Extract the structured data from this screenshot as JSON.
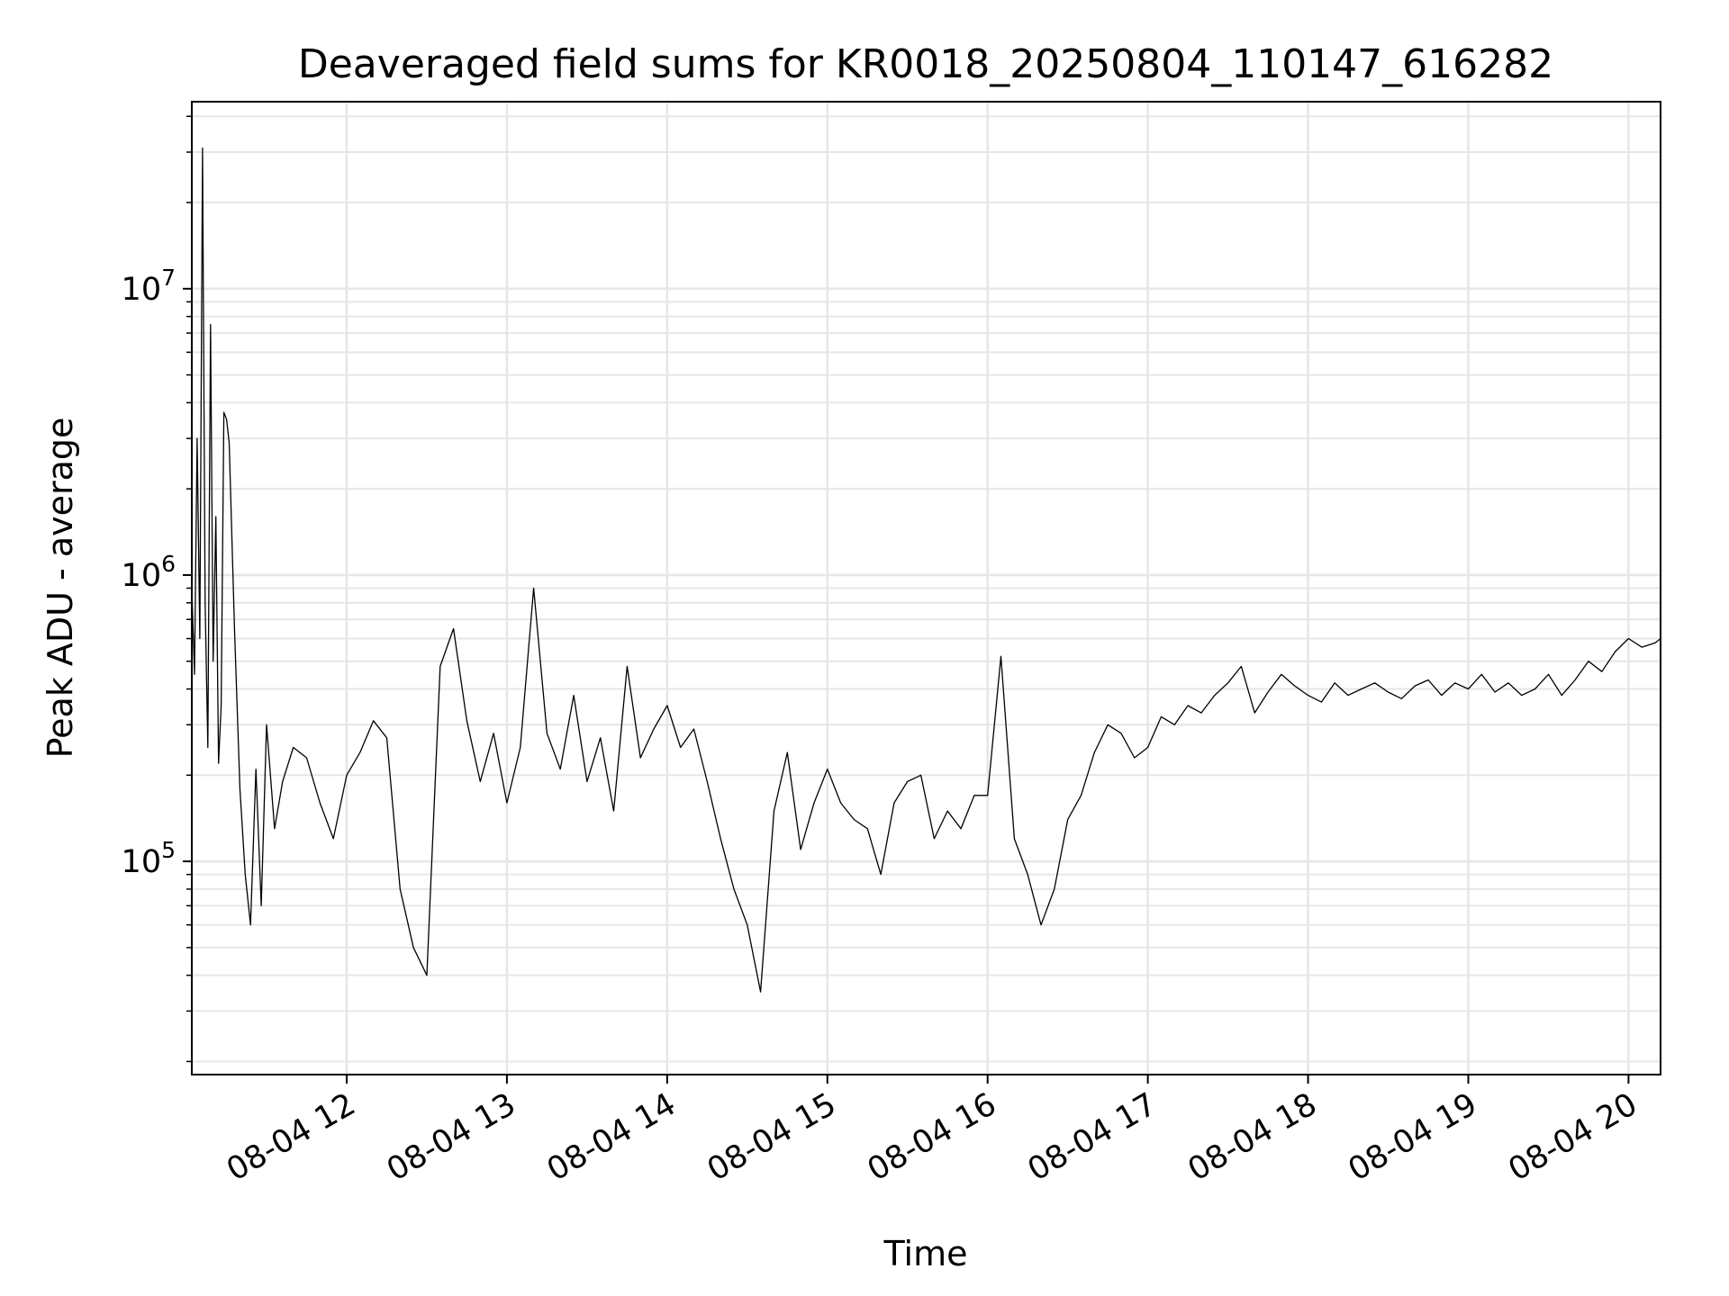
{
  "chart_data": {
    "type": "line",
    "title": "Deaveraged field sums for KR0018_20250804_110147_616282",
    "xlabel": "Time",
    "ylabel": "Peak ADU - average",
    "yscale": "log",
    "grid": true,
    "line_color": "#000000",
    "grid_color": "#e6e6e6",
    "xlim": [
      "2025-08-04 11:02",
      "2025-08-04 20:12"
    ],
    "ylim": [
      18000,
      45000000
    ],
    "x_ticks": [
      {
        "t": "2025-08-04 12:00",
        "label": "08-04 12"
      },
      {
        "t": "2025-08-04 13:00",
        "label": "08-04 13"
      },
      {
        "t": "2025-08-04 14:00",
        "label": "08-04 14"
      },
      {
        "t": "2025-08-04 15:00",
        "label": "08-04 15"
      },
      {
        "t": "2025-08-04 16:00",
        "label": "08-04 16"
      },
      {
        "t": "2025-08-04 17:00",
        "label": "08-04 17"
      },
      {
        "t": "2025-08-04 18:00",
        "label": "08-04 18"
      },
      {
        "t": "2025-08-04 19:00",
        "label": "08-04 19"
      },
      {
        "t": "2025-08-04 20:00",
        "label": "08-04 20"
      }
    ],
    "y_ticks": [
      {
        "value": 100000,
        "base": "10",
        "exp": "5"
      },
      {
        "value": 1000000,
        "base": "10",
        "exp": "6"
      },
      {
        "value": 10000000,
        "base": "10",
        "exp": "7"
      }
    ],
    "series": [
      {
        "x": [
          "2025-08-04 11:02",
          "2025-08-04 11:03",
          "2025-08-04 11:04",
          "2025-08-04 11:05",
          "2025-08-04 11:06",
          "2025-08-04 11:07",
          "2025-08-04 11:08",
          "2025-08-04 11:09",
          "2025-08-04 11:10",
          "2025-08-04 11:11",
          "2025-08-04 11:12",
          "2025-08-04 11:13",
          "2025-08-04 11:14",
          "2025-08-04 11:15",
          "2025-08-04 11:16",
          "2025-08-04 11:18",
          "2025-08-04 11:20",
          "2025-08-04 11:22",
          "2025-08-04 11:24",
          "2025-08-04 11:26",
          "2025-08-04 11:28",
          "2025-08-04 11:30",
          "2025-08-04 11:33",
          "2025-08-04 11:36",
          "2025-08-04 11:40",
          "2025-08-04 11:45",
          "2025-08-04 11:50",
          "2025-08-04 11:55",
          "2025-08-04 12:00",
          "2025-08-04 12:05",
          "2025-08-04 12:10",
          "2025-08-04 12:15",
          "2025-08-04 12:20",
          "2025-08-04 12:25",
          "2025-08-04 12:30",
          "2025-08-04 12:35",
          "2025-08-04 12:40",
          "2025-08-04 12:45",
          "2025-08-04 12:50",
          "2025-08-04 12:55",
          "2025-08-04 13:00",
          "2025-08-04 13:05",
          "2025-08-04 13:10",
          "2025-08-04 13:15",
          "2025-08-04 13:20",
          "2025-08-04 13:25",
          "2025-08-04 13:30",
          "2025-08-04 13:35",
          "2025-08-04 13:40",
          "2025-08-04 13:45",
          "2025-08-04 13:50",
          "2025-08-04 13:55",
          "2025-08-04 14:00",
          "2025-08-04 14:05",
          "2025-08-04 14:10",
          "2025-08-04 14:15",
          "2025-08-04 14:20",
          "2025-08-04 14:25",
          "2025-08-04 14:30",
          "2025-08-04 14:35",
          "2025-08-04 14:40",
          "2025-08-04 14:45",
          "2025-08-04 14:50",
          "2025-08-04 14:55",
          "2025-08-04 15:00",
          "2025-08-04 15:05",
          "2025-08-04 15:10",
          "2025-08-04 15:15",
          "2025-08-04 15:20",
          "2025-08-04 15:25",
          "2025-08-04 15:30",
          "2025-08-04 15:35",
          "2025-08-04 15:40",
          "2025-08-04 15:45",
          "2025-08-04 15:50",
          "2025-08-04 15:55",
          "2025-08-04 16:00",
          "2025-08-04 16:05",
          "2025-08-04 16:10",
          "2025-08-04 16:15",
          "2025-08-04 16:20",
          "2025-08-04 16:25",
          "2025-08-04 16:30",
          "2025-08-04 16:35",
          "2025-08-04 16:40",
          "2025-08-04 16:45",
          "2025-08-04 16:50",
          "2025-08-04 16:55",
          "2025-08-04 17:00",
          "2025-08-04 17:05",
          "2025-08-04 17:10",
          "2025-08-04 17:15",
          "2025-08-04 17:20",
          "2025-08-04 17:25",
          "2025-08-04 17:30",
          "2025-08-04 17:35",
          "2025-08-04 17:40",
          "2025-08-04 17:45",
          "2025-08-04 17:50",
          "2025-08-04 17:55",
          "2025-08-04 18:00",
          "2025-08-04 18:05",
          "2025-08-04 18:10",
          "2025-08-04 18:15",
          "2025-08-04 18:20",
          "2025-08-04 18:25",
          "2025-08-04 18:30",
          "2025-08-04 18:35",
          "2025-08-04 18:40",
          "2025-08-04 18:45",
          "2025-08-04 18:50",
          "2025-08-04 18:55",
          "2025-08-04 19:00",
          "2025-08-04 19:05",
          "2025-08-04 19:10",
          "2025-08-04 19:15",
          "2025-08-04 19:20",
          "2025-08-04 19:25",
          "2025-08-04 19:30",
          "2025-08-04 19:35",
          "2025-08-04 19:40",
          "2025-08-04 19:45",
          "2025-08-04 19:50",
          "2025-08-04 19:55",
          "2025-08-04 20:00",
          "2025-08-04 20:05",
          "2025-08-04 20:10",
          "2025-08-04 20:12"
        ],
        "values": [
          900000,
          450000,
          3000000,
          600000,
          31000000,
          800000,
          250000,
          7500000,
          500000,
          1600000,
          220000,
          350000,
          3700000,
          3500000,
          2900000,
          650000,
          180000,
          90000,
          60000,
          210000,
          70000,
          300000,
          130000,
          190000,
          250000,
          230000,
          160000,
          120000,
          200000,
          240000,
          310000,
          270000,
          80000,
          50000,
          40000,
          480000,
          650000,
          310000,
          190000,
          280000,
          160000,
          250000,
          900000,
          280000,
          210000,
          380000,
          190000,
          270000,
          150000,
          480000,
          230000,
          290000,
          350000,
          250000,
          290000,
          190000,
          120000,
          80000,
          60000,
          35000,
          150000,
          240000,
          110000,
          160000,
          210000,
          160000,
          140000,
          130000,
          90000,
          160000,
          190000,
          200000,
          120000,
          150000,
          130000,
          170000,
          170000,
          520000,
          120000,
          90000,
          60000,
          80000,
          140000,
          170000,
          240000,
          300000,
          280000,
          230000,
          250000,
          320000,
          300000,
          350000,
          330000,
          380000,
          420000,
          480000,
          330000,
          390000,
          450000,
          410000,
          380000,
          360000,
          420000,
          380000,
          400000,
          420000,
          390000,
          370000,
          410000,
          430000,
          380000,
          420000,
          400000,
          450000,
          390000,
          420000,
          380000,
          400000,
          450000,
          380000,
          430000,
          500000,
          460000,
          540000,
          600000,
          560000,
          580000,
          600000
        ]
      },
      {
        "name": "",
        "note": ""
      }
    ]
  }
}
